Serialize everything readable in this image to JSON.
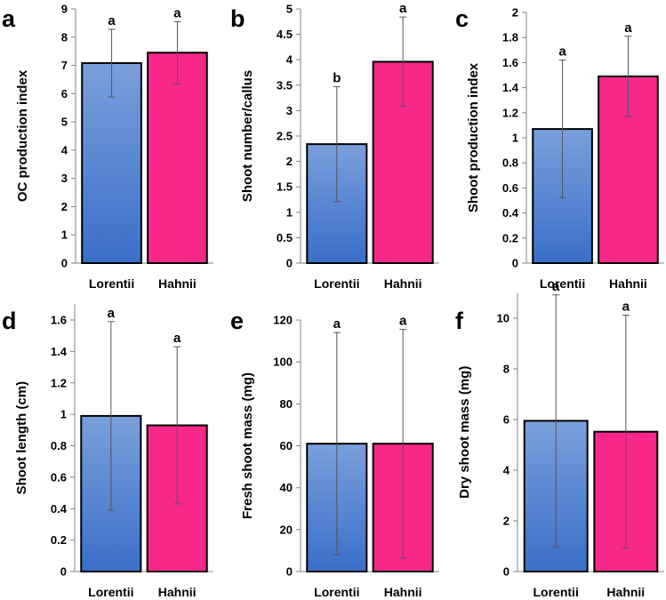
{
  "colors": {
    "lorentii_top": "#7a9fdc",
    "lorentii_bottom": "#3a6fc8",
    "hahnii": "#f7288a",
    "axis": "#808080",
    "bar_border": "#000000",
    "error_bar": "#555555"
  },
  "chart_data": [
    {
      "panel": "a",
      "type": "bar",
      "categories": [
        "Lorentii",
        "Hahnii"
      ],
      "values": [
        7.08,
        7.45
      ],
      "errors": [
        1.2,
        1.1
      ],
      "letters": [
        "a",
        "a"
      ],
      "ylabel": "OC production index",
      "ylim": [
        0,
        9
      ],
      "yticks": [
        0,
        1,
        2,
        3,
        4,
        5,
        6,
        7,
        8,
        9
      ],
      "ytick_labels": [
        "0",
        "1",
        "2",
        "3",
        "4",
        "5",
        "6",
        "7",
        "8",
        "9"
      ]
    },
    {
      "panel": "b",
      "type": "bar",
      "categories": [
        "Lorentii",
        "Hahnii"
      ],
      "values": [
        2.34,
        3.96
      ],
      "errors": [
        1.13,
        0.88
      ],
      "letters": [
        "b",
        "a"
      ],
      "ylabel": "Shoot number/callus",
      "ylim": [
        0,
        5
      ],
      "yticks": [
        0,
        0.5,
        1,
        1.5,
        2,
        2.5,
        3,
        3.5,
        4,
        4.5,
        5
      ],
      "ytick_labels": [
        "0",
        "0.5",
        "1",
        "1.5",
        "2",
        "2.5",
        "3",
        "3.5",
        "4",
        "4.5",
        "5"
      ]
    },
    {
      "panel": "c",
      "type": "bar",
      "categories": [
        "Lorentii",
        "Hahnii"
      ],
      "values": [
        1.07,
        1.49
      ],
      "errors": [
        0.55,
        0.32
      ],
      "letters": [
        "a",
        "a"
      ],
      "ylabel": "Shoot production index",
      "ylim": [
        0,
        2
      ],
      "yticks": [
        0,
        0.2,
        0.4,
        0.6,
        0.8,
        1,
        1.2,
        1.4,
        1.6,
        1.8,
        2
      ],
      "ytick_labels": [
        "0",
        "0.2",
        "0.4",
        "0.6",
        "0.8",
        "1",
        "1.2",
        "1.4",
        "1.6",
        "1.8",
        "2"
      ]
    },
    {
      "panel": "d",
      "type": "bar",
      "categories": [
        "Lorentii",
        "Hahnii"
      ],
      "values": [
        0.99,
        0.93
      ],
      "errors": [
        0.6,
        0.5
      ],
      "letters": [
        "a",
        "a"
      ],
      "ylabel": "Shoot length (cm)",
      "ylim": [
        0,
        1.7
      ],
      "yticks": [
        0,
        0.2,
        0.4,
        0.6,
        0.8,
        1,
        1.2,
        1.4,
        1.6
      ],
      "ytick_labels": [
        "0",
        "0.2",
        "0.4",
        "0.6",
        "0.8",
        "1",
        "1.2",
        "1.4",
        "1.6"
      ]
    },
    {
      "panel": "e",
      "type": "bar",
      "categories": [
        "Lorentii",
        "Hahnii"
      ],
      "values": [
        61,
        61
      ],
      "errors": [
        53,
        54.5
      ],
      "letters": [
        "a",
        "a"
      ],
      "ylabel": "Fresh shoot mass (mg)",
      "ylim": [
        0,
        120
      ],
      "yticks": [
        0,
        20,
        40,
        60,
        80,
        100,
        120
      ],
      "ytick_labels": [
        "0",
        "20",
        "40",
        "60",
        "80",
        "100",
        "120"
      ]
    },
    {
      "panel": "f",
      "type": "bar",
      "categories": [
        "Lorentii",
        "Hahnii"
      ],
      "values": [
        5.95,
        5.52
      ],
      "errors": [
        4.97,
        4.6
      ],
      "letters": [
        "a",
        "a"
      ],
      "ylabel": "Dry shoot mass (mg)",
      "ylim": [
        0,
        11
      ],
      "yticks": [
        0,
        2,
        4,
        6,
        8,
        10
      ],
      "ytick_labels": [
        "0",
        "2",
        "4",
        "6",
        "8",
        "10"
      ]
    }
  ]
}
